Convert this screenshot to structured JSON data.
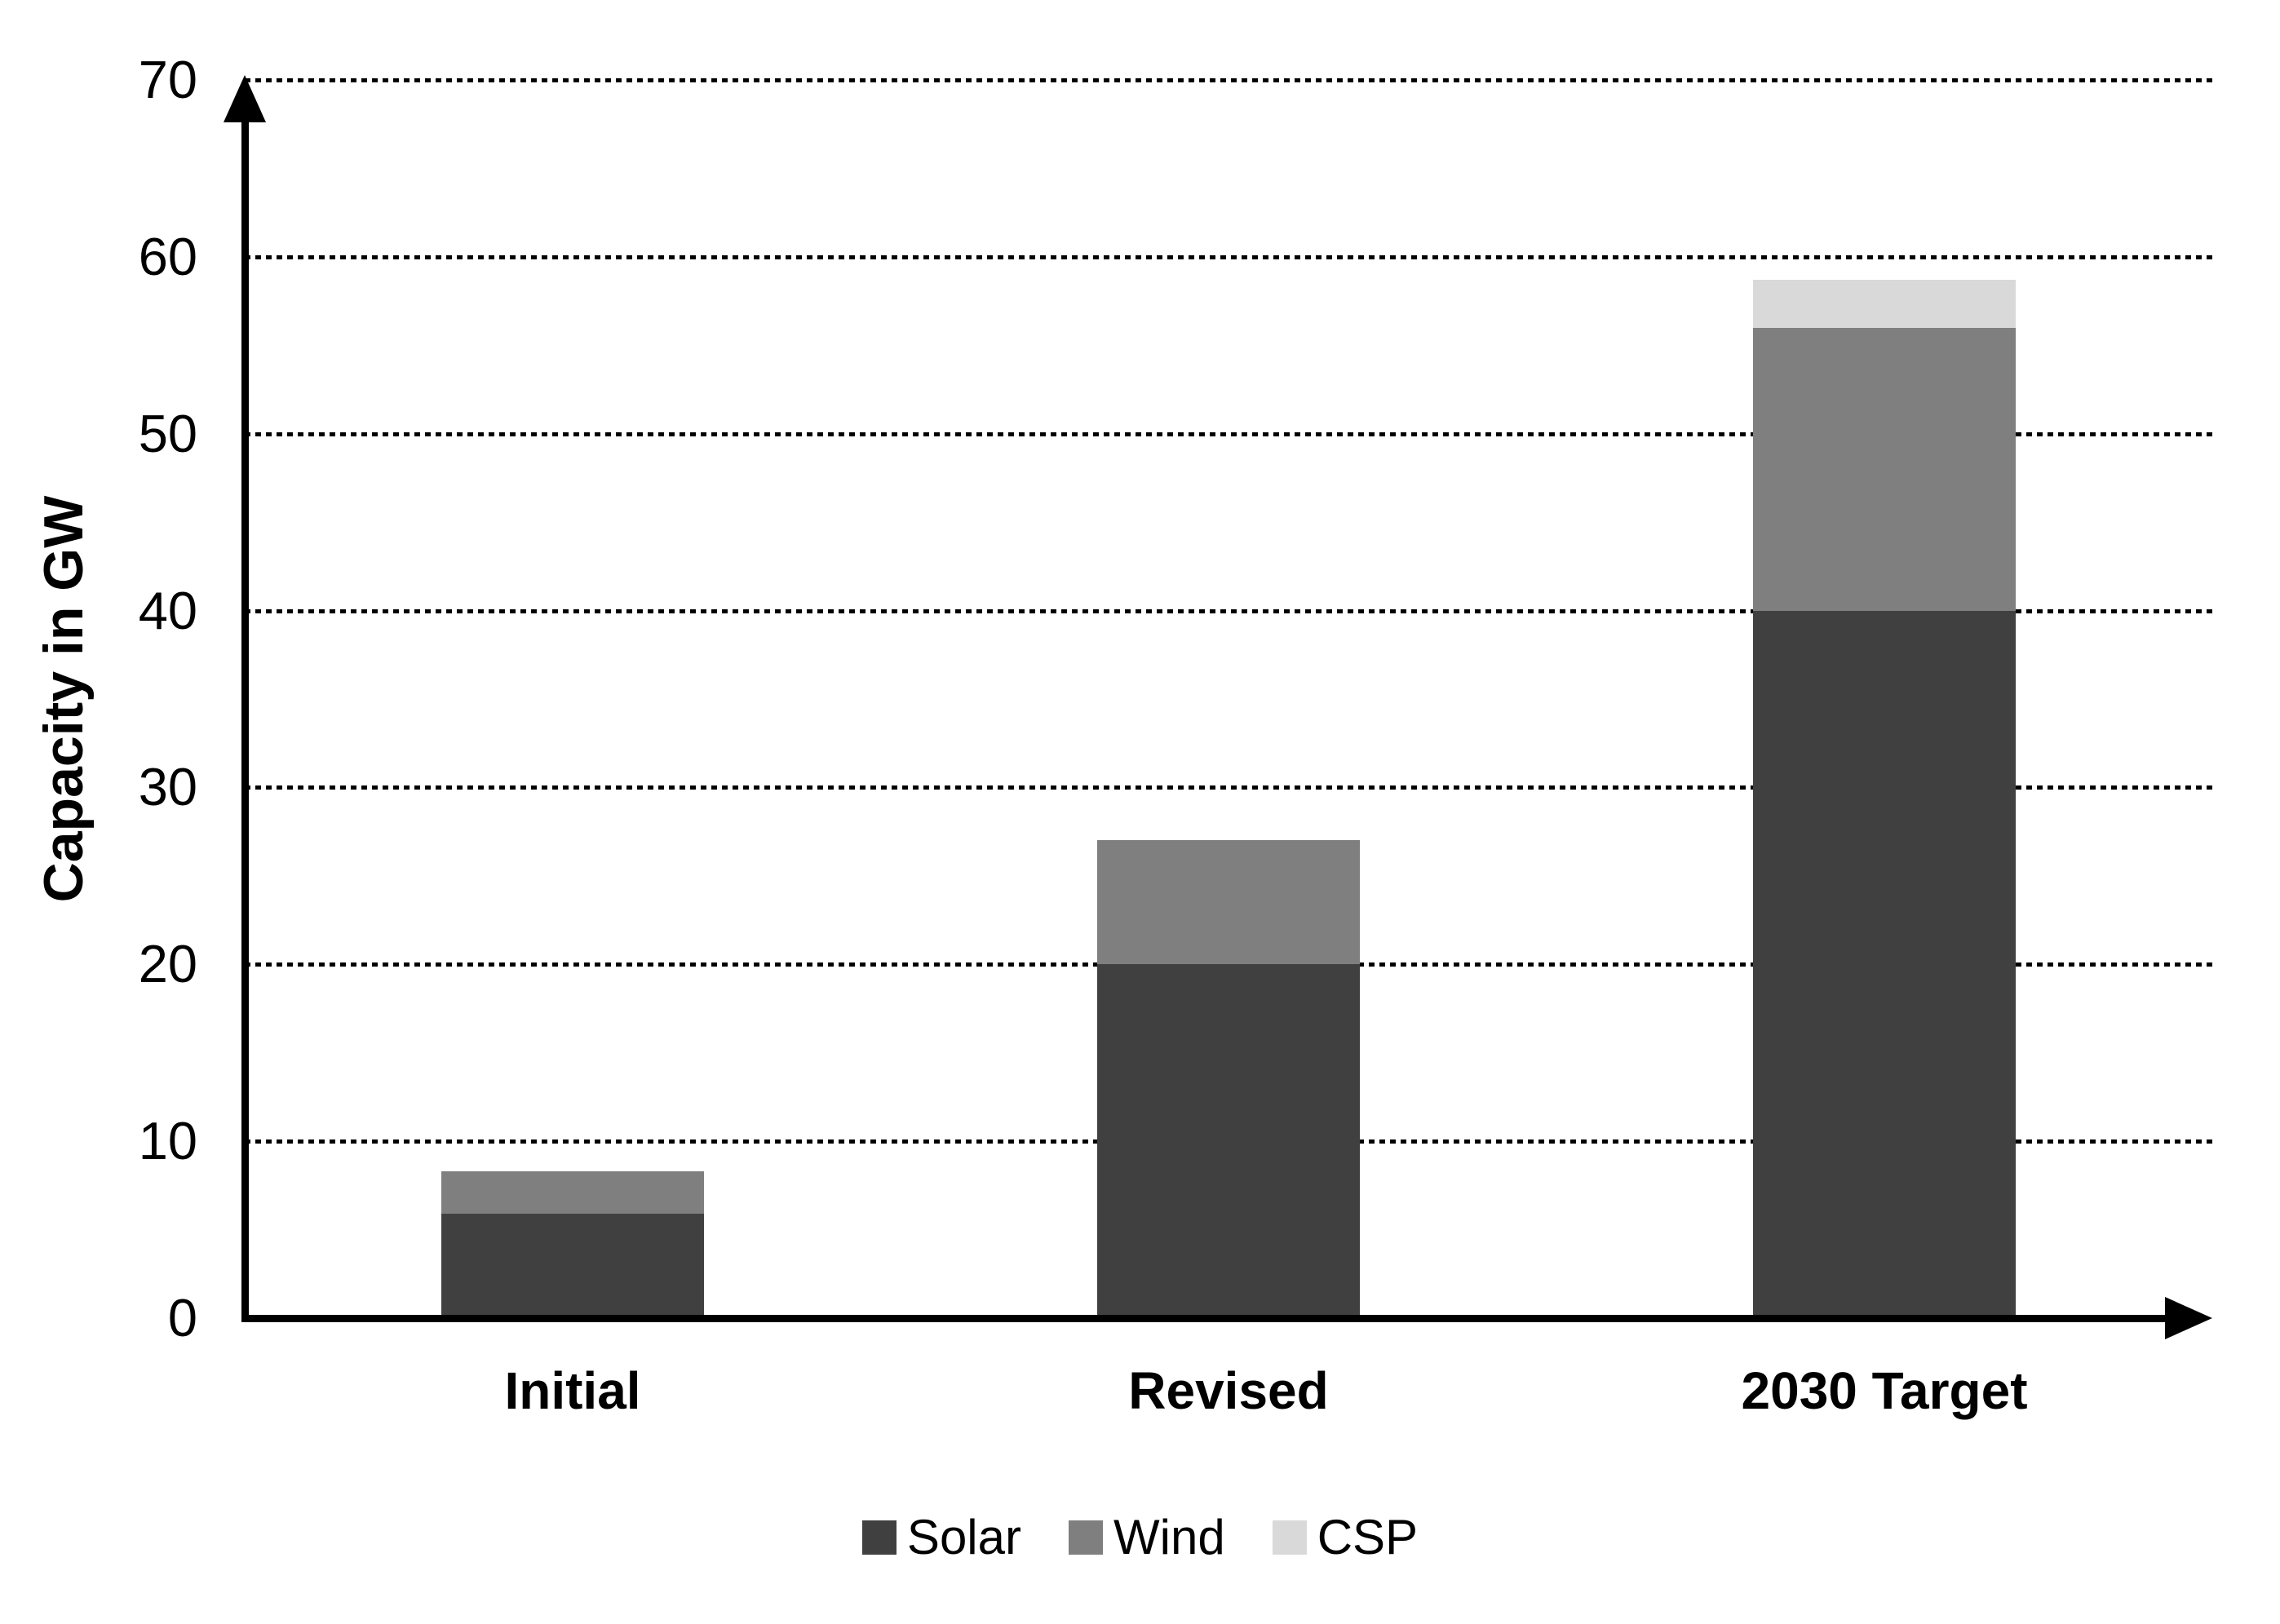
{
  "chart_data": {
    "type": "bar",
    "stacked": true,
    "title": "",
    "xlabel": "",
    "ylabel": "Capacity in GW",
    "categories": [
      "Initial",
      "Revised",
      "2030 Target"
    ],
    "series": [
      {
        "name": "Solar",
        "color": "#404040",
        "values": [
          5.9,
          20,
          40
        ]
      },
      {
        "name": "Wind",
        "color": "#7F7F7F",
        "values": [
          2.4,
          7,
          16
        ]
      },
      {
        "name": "CSP",
        "color": "#D9D9D9",
        "values": [
          0,
          0,
          2.7
        ]
      }
    ],
    "stack_totals": [
      8.3,
      27,
      58.7
    ],
    "ylim": [
      0,
      70
    ],
    "yticks": [
      0,
      10,
      20,
      30,
      40,
      50,
      60,
      70
    ],
    "grid": "horizontal-dotted",
    "gridline_color": "#000000",
    "axis_color": "#000000",
    "axis_arrows": true,
    "legend_position": "bottom-center",
    "legend_labels": [
      "Solar",
      "Wind",
      "CSP"
    ]
  }
}
